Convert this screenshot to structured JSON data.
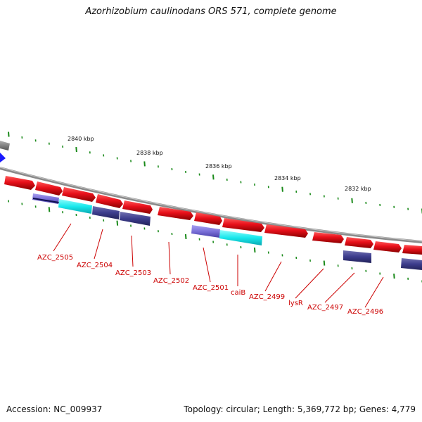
{
  "title": "Azorhizobium caulinodans ORS 571, complete genome",
  "footer": {
    "accession": "Accession: NC_009937",
    "topology": "Topology: circular; Length: 5,369,772 bp; Genes: 4,779"
  },
  "ruler_labels": [
    "2840 kbp",
    "2838 kbp",
    "2836 kbp",
    "2834 kbp",
    "2832 kbp"
  ],
  "gene_labels": [
    "AZC_2505",
    "AZC_2504",
    "AZC_2503",
    "AZC_2502",
    "AZC_2501",
    "caiB",
    "AZC_2499",
    "lysR",
    "AZC_2497",
    "AZC_2496"
  ],
  "colors": {
    "forward_gene": "#e8101a",
    "cds_cyan": "#18e8ec",
    "cds_slate": "#3c3c8c",
    "cds_lavender": "#7a70d8",
    "backbone": "#8a8a8a",
    "tick_green": "#1a8a1a",
    "label_red": "#cc0000",
    "marker_blue": "#1a1aff"
  }
}
